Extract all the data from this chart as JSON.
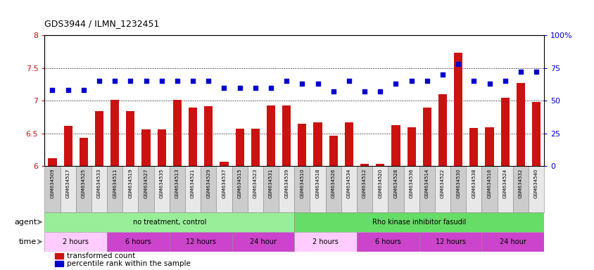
{
  "title": "GDS3944 / ILMN_1232451",
  "samples": [
    "GSM634509",
    "GSM634517",
    "GSM634525",
    "GSM634533",
    "GSM634511",
    "GSM634519",
    "GSM634527",
    "GSM634535",
    "GSM634513",
    "GSM634521",
    "GSM634529",
    "GSM634537",
    "GSM634515",
    "GSM634523",
    "GSM634531",
    "GSM634539",
    "GSM634510",
    "GSM634518",
    "GSM634526",
    "GSM634534",
    "GSM634512",
    "GSM634520",
    "GSM634528",
    "GSM634536",
    "GSM634514",
    "GSM634522",
    "GSM634530",
    "GSM634538",
    "GSM634516",
    "GSM634524",
    "GSM634532",
    "GSM634540"
  ],
  "bar_values": [
    6.12,
    6.62,
    6.43,
    6.84,
    7.01,
    6.84,
    6.56,
    6.56,
    7.01,
    6.89,
    6.92,
    6.07,
    6.57,
    6.57,
    6.93,
    6.93,
    6.65,
    6.67,
    6.47,
    6.67,
    6.04,
    6.04,
    6.63,
    6.6,
    6.9,
    7.1,
    7.73,
    6.58,
    6.6,
    7.05,
    7.27,
    6.98
  ],
  "dot_values": [
    58,
    58,
    58,
    65,
    65,
    65,
    65,
    65,
    65,
    65,
    65,
    60,
    60,
    60,
    60,
    65,
    63,
    63,
    57,
    65,
    57,
    57,
    63,
    65,
    65,
    70,
    78,
    65,
    63,
    65,
    72,
    72
  ],
  "bar_color": "#cc1111",
  "dot_color": "#0000cc",
  "ylim_left": [
    6.0,
    8.0
  ],
  "ylim_right": [
    0,
    100
  ],
  "yticks_left": [
    6.0,
    6.5,
    7.0,
    7.5,
    8.0
  ],
  "yticks_right": [
    0,
    25,
    50,
    75,
    100
  ],
  "ytick_labels_right": [
    "0",
    "25",
    "50",
    "75",
    "100%"
  ],
  "gridlines": [
    6.5,
    7.0,
    7.5
  ],
  "agent_groups": [
    {
      "label": "no treatment, control",
      "start": 0,
      "end": 16,
      "color": "#99ee99"
    },
    {
      "label": "Rho kinase inhibitor fasudil",
      "start": 16,
      "end": 32,
      "color": "#66dd66"
    }
  ],
  "time_groups": [
    {
      "label": "2 hours",
      "start": 0,
      "end": 4,
      "color": "#ffccff"
    },
    {
      "label": "6 hours",
      "start": 4,
      "end": 8,
      "color": "#dd66dd"
    },
    {
      "label": "12 hours",
      "start": 8,
      "end": 12,
      "color": "#dd66dd"
    },
    {
      "label": "24 hour",
      "start": 12,
      "end": 16,
      "color": "#dd66dd"
    },
    {
      "label": "2 hours",
      "start": 16,
      "end": 20,
      "color": "#ffccff"
    },
    {
      "label": "6 hours",
      "start": 20,
      "end": 24,
      "color": "#dd66dd"
    },
    {
      "label": "12 hours",
      "start": 24,
      "end": 28,
      "color": "#dd66dd"
    },
    {
      "label": "24 hour",
      "start": 28,
      "end": 32,
      "color": "#dd66dd"
    }
  ],
  "legend_items": [
    {
      "label": "transformed count",
      "color": "#cc1111"
    },
    {
      "label": "percentile rank within the sample",
      "color": "#0000cc"
    }
  ],
  "agent_label": "agent",
  "time_label": "time",
  "sample_bg_odd": "#cccccc",
  "sample_bg_even": "#e8e8e8",
  "background_color": "#ffffff"
}
